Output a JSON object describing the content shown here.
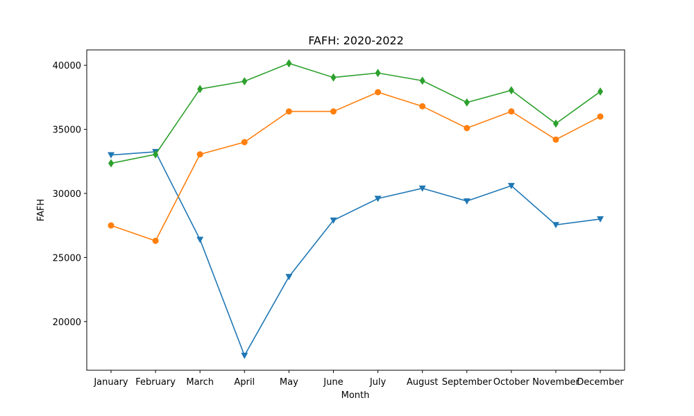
{
  "chart_data": {
    "type": "line",
    "title": "FAFH: 2020-2022",
    "xlabel": "Month",
    "ylabel": "FAFH",
    "categories": [
      "January",
      "February",
      "March",
      "April",
      "May",
      "June",
      "July",
      "August",
      "September",
      "October",
      "November",
      "December"
    ],
    "ylim": [
      16200,
      41200
    ],
    "yticks": [
      20000,
      25000,
      30000,
      35000,
      40000
    ],
    "grid": false,
    "series": [
      {
        "color": "#1f77b4",
        "marker": "triangle-down",
        "values": [
          33000,
          33250,
          26400,
          17350,
          23500,
          27900,
          29600,
          30400,
          29400,
          30600,
          27550,
          28000
        ]
      },
      {
        "color": "#ff7f0e",
        "marker": "circle",
        "values": [
          27500,
          26300,
          33050,
          34000,
          36400,
          36400,
          37900,
          36800,
          35100,
          36400,
          34200,
          36000
        ]
      },
      {
        "color": "#2ca02c",
        "marker": "diamond",
        "values": [
          32350,
          33050,
          38150,
          38750,
          40150,
          39050,
          39400,
          38800,
          37100,
          38050,
          35450,
          37950
        ]
      }
    ]
  }
}
